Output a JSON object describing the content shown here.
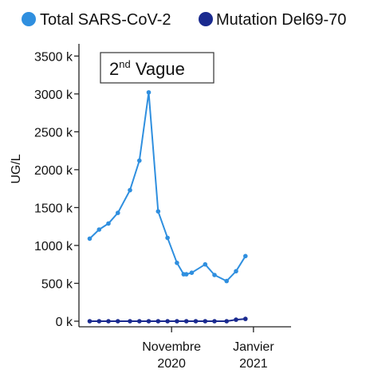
{
  "chart_data": {
    "type": "line",
    "ylabel": "UG/L",
    "xlabel": "",
    "ylim": [
      0,
      3650
    ],
    "y_ticks": [
      0,
      500,
      1000,
      1500,
      2000,
      2500,
      3000,
      3500
    ],
    "y_tick_labels": [
      "0 k",
      "500 k",
      "1000 k",
      "1500 k",
      "2000 k",
      "2500 k",
      "3000 k",
      "3500 k"
    ],
    "x_ticks": [
      {
        "date": "2020-11-01",
        "line1": "Novembre",
        "line2": "2020"
      },
      {
        "date": "2021-01-01",
        "line1": "Janvier",
        "line2": "2021"
      }
    ],
    "xlim": [
      "2020-08-24",
      "2021-01-29"
    ],
    "legend_position": "top",
    "annotation": {
      "main": "2",
      "sup": "nd",
      "rest": " Vague"
    },
    "series": [
      {
        "name": "Total SARS-CoV-2",
        "color": "#2f8fdf",
        "points": [
          {
            "x": "2020-09-01",
            "y": 1090
          },
          {
            "x": "2020-09-08",
            "y": 1210
          },
          {
            "x": "2020-09-15",
            "y": 1290
          },
          {
            "x": "2020-09-22",
            "y": 1430
          },
          {
            "x": "2020-10-01",
            "y": 1730
          },
          {
            "x": "2020-10-08",
            "y": 2120
          },
          {
            "x": "2020-10-15",
            "y": 3020
          },
          {
            "x": "2020-10-22",
            "y": 1450
          },
          {
            "x": "2020-10-29",
            "y": 1100
          },
          {
            "x": "2020-11-05",
            "y": 770
          },
          {
            "x": "2020-11-10",
            "y": 620
          },
          {
            "x": "2020-11-12",
            "y": 620
          },
          {
            "x": "2020-11-16",
            "y": 640
          },
          {
            "x": "2020-11-26",
            "y": 750
          },
          {
            "x": "2020-12-03",
            "y": 610
          },
          {
            "x": "2020-12-12",
            "y": 530
          },
          {
            "x": "2020-12-19",
            "y": 660
          },
          {
            "x": "2020-12-26",
            "y": 860
          }
        ]
      },
      {
        "name": "Mutation Del69-70",
        "color": "#1a2a8f",
        "points": [
          {
            "x": "2020-09-01",
            "y": 0
          },
          {
            "x": "2020-09-08",
            "y": 0
          },
          {
            "x": "2020-09-15",
            "y": 0
          },
          {
            "x": "2020-09-22",
            "y": 0
          },
          {
            "x": "2020-10-01",
            "y": 0
          },
          {
            "x": "2020-10-08",
            "y": 0
          },
          {
            "x": "2020-10-15",
            "y": 0
          },
          {
            "x": "2020-10-22",
            "y": 0
          },
          {
            "x": "2020-10-29",
            "y": 0
          },
          {
            "x": "2020-11-05",
            "y": 0
          },
          {
            "x": "2020-11-12",
            "y": 0
          },
          {
            "x": "2020-11-19",
            "y": 0
          },
          {
            "x": "2020-11-26",
            "y": 0
          },
          {
            "x": "2020-12-03",
            "y": 0
          },
          {
            "x": "2020-12-12",
            "y": 0
          },
          {
            "x": "2020-12-19",
            "y": 20
          },
          {
            "x": "2020-12-26",
            "y": 30
          }
        ]
      }
    ]
  }
}
